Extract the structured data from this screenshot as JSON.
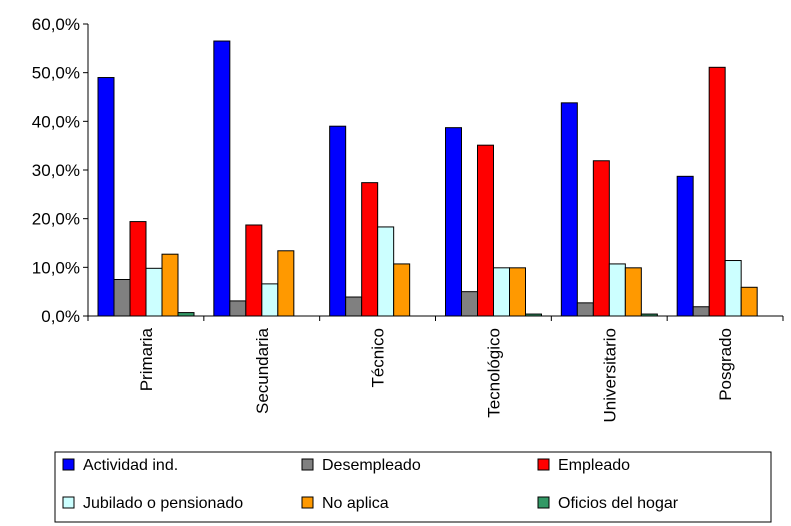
{
  "chart_data": {
    "type": "bar",
    "title": "",
    "xlabel": "",
    "ylabel": "",
    "ylim": [
      0,
      60
    ],
    "y_ticks": [
      "0,0%",
      "10,0%",
      "20,0%",
      "30,0%",
      "40,0%",
      "50,0%",
      "60,0%"
    ],
    "categories": [
      "Primaria",
      "Secundaria",
      "Técnico",
      "Tecnológico",
      "Universitario",
      "Posgrado"
    ],
    "grid": false,
    "legend_position": "bottom",
    "series": [
      {
        "name": "Actividad ind.",
        "color": "#0000ff",
        "values": [
          49.0,
          56.5,
          39.0,
          38.7,
          43.8,
          28.7
        ]
      },
      {
        "name": "Desempleado",
        "color": "#808080",
        "values": [
          7.5,
          3.1,
          3.9,
          5.0,
          2.7,
          1.9
        ]
      },
      {
        "name": "Empleado",
        "color": "#ff0000",
        "values": [
          19.4,
          18.7,
          27.4,
          35.1,
          31.9,
          51.1
        ]
      },
      {
        "name": "Jubilado o pensionado",
        "color": "#ccffff",
        "values": [
          9.8,
          6.6,
          18.3,
          9.9,
          10.7,
          11.4
        ]
      },
      {
        "name": "No aplica",
        "color": "#ff9900",
        "values": [
          12.7,
          13.4,
          10.7,
          9.9,
          9.9,
          5.9
        ]
      },
      {
        "name": "Oficios del hogar",
        "color": "#339966",
        "values": [
          0.7,
          0.0,
          0.0,
          0.4,
          0.4,
          0.0
        ]
      }
    ]
  }
}
